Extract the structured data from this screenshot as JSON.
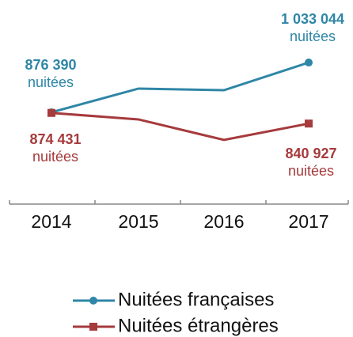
{
  "chart_data": {
    "type": "line",
    "categories": [
      "2014",
      "2015",
      "2016",
      "2017"
    ],
    "ylim": [
      580000,
      1180000
    ],
    "series": [
      {
        "name": "Nuitées françaises",
        "color": "#2f86a6",
        "marker": "circle",
        "values": [
          876390,
          951000,
          946000,
          1033044
        ],
        "value_labels": [
          "876 390",
          null,
          null,
          "1 033 044"
        ]
      },
      {
        "name": "Nuitées étrangères",
        "color": "#a63a3c",
        "marker": "square",
        "values": [
          874431,
          854000,
          789400,
          840927
        ],
        "value_labels": [
          "874 431",
          null,
          null,
          "840 927"
        ]
      }
    ],
    "value_label_unit": "nuitées",
    "legend": "bottom"
  }
}
